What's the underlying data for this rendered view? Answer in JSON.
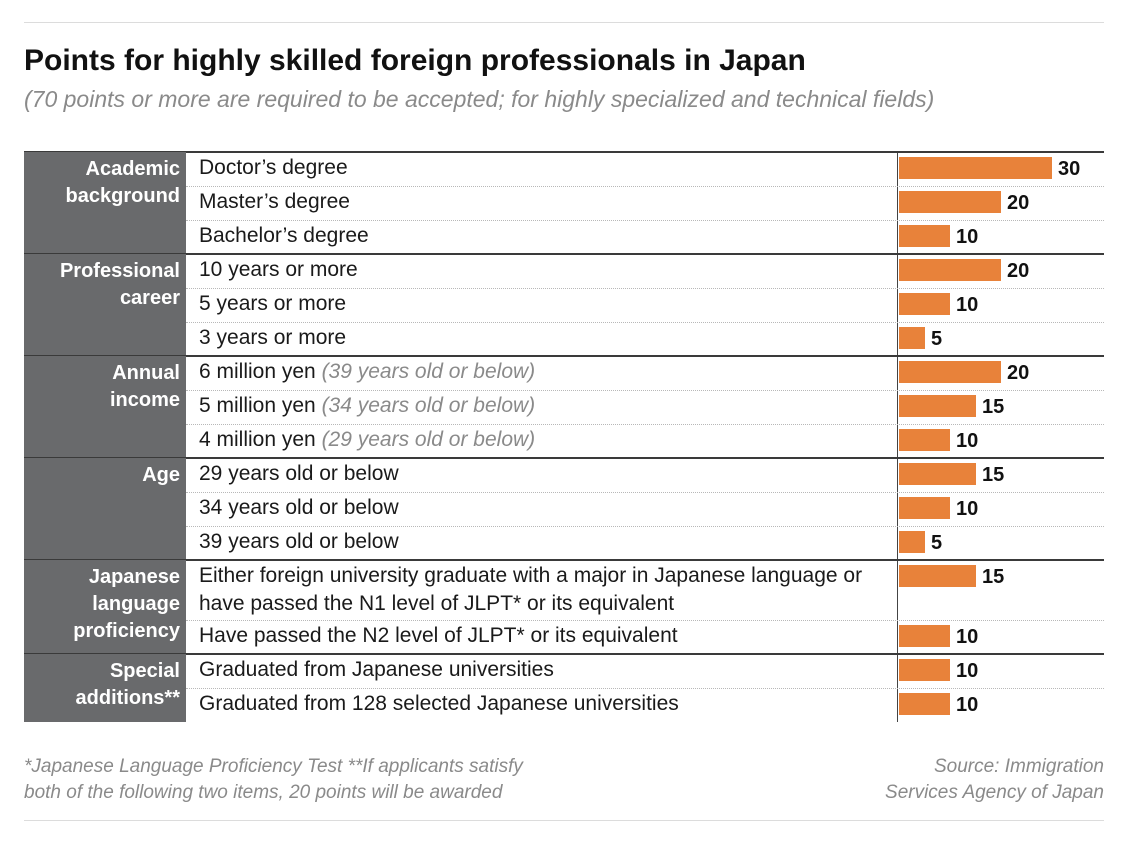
{
  "header": {
    "title": "Points for highly skilled foreign professionals in Japan",
    "subtitle": "(70 points or more are required to be accepted; for highly specialized and technical fields)"
  },
  "footer": {
    "notes": "*Japanese Language Proficiency Test  **If applicants satisfy\nboth of the following two items, 20 points will be awarded",
    "source": "Source: Immigration\nServices Agency of Japan"
  },
  "colors": {
    "bar": "#e8823a",
    "category_bg": "#696a6c"
  },
  "chart_data": {
    "type": "bar",
    "orientation": "horizontal",
    "title": "Points for highly skilled foreign professionals in Japan",
    "subtitle": "(70 points or more are required to be accepted; for highly specialized and technical fields)",
    "xlim": [
      0,
      30
    ],
    "grid": false,
    "groups": [
      {
        "category": "Academic\nbackground",
        "items": [
          {
            "label": "Doctor’s degree",
            "note": "",
            "value": 30
          },
          {
            "label": "Master’s degree",
            "note": "",
            "value": 20
          },
          {
            "label": "Bachelor’s degree",
            "note": "",
            "value": 10
          }
        ]
      },
      {
        "category": "Professional\ncareer",
        "items": [
          {
            "label": "10 years or more",
            "note": "",
            "value": 20
          },
          {
            "label": "5 years or more",
            "note": "",
            "value": 10
          },
          {
            "label": "3 years or more",
            "note": "",
            "value": 5
          }
        ]
      },
      {
        "category": "Annual\nincome",
        "items": [
          {
            "label": "6 million yen ",
            "note": "(39 years old or below)",
            "value": 20
          },
          {
            "label": "5 million yen ",
            "note": "(34 years old or below)",
            "value": 15
          },
          {
            "label": "4 million yen ",
            "note": "(29 years old or below)",
            "value": 10
          }
        ]
      },
      {
        "category": "Age",
        "items": [
          {
            "label": "29 years old or below",
            "note": "",
            "value": 15
          },
          {
            "label": "34 years old or below",
            "note": "",
            "value": 10
          },
          {
            "label": "39 years old or below",
            "note": "",
            "value": 5
          }
        ]
      },
      {
        "category": "Japanese\nlanguage\nproficiency",
        "items": [
          {
            "label": "Either foreign university graduate with a major in Japanese language or have passed the N1 level of JLPT* or its equivalent",
            "note": "",
            "value": 15
          },
          {
            "label": "Have passed the N2 level of JLPT* or its equivalent",
            "note": "",
            "value": 10
          }
        ]
      },
      {
        "category": "Special\nadditions**",
        "items": [
          {
            "label": "Graduated from Japanese universities",
            "note": "",
            "value": 10
          },
          {
            "label": "Graduated from 128 selected Japanese universities",
            "note": "",
            "value": 10
          }
        ]
      }
    ]
  }
}
